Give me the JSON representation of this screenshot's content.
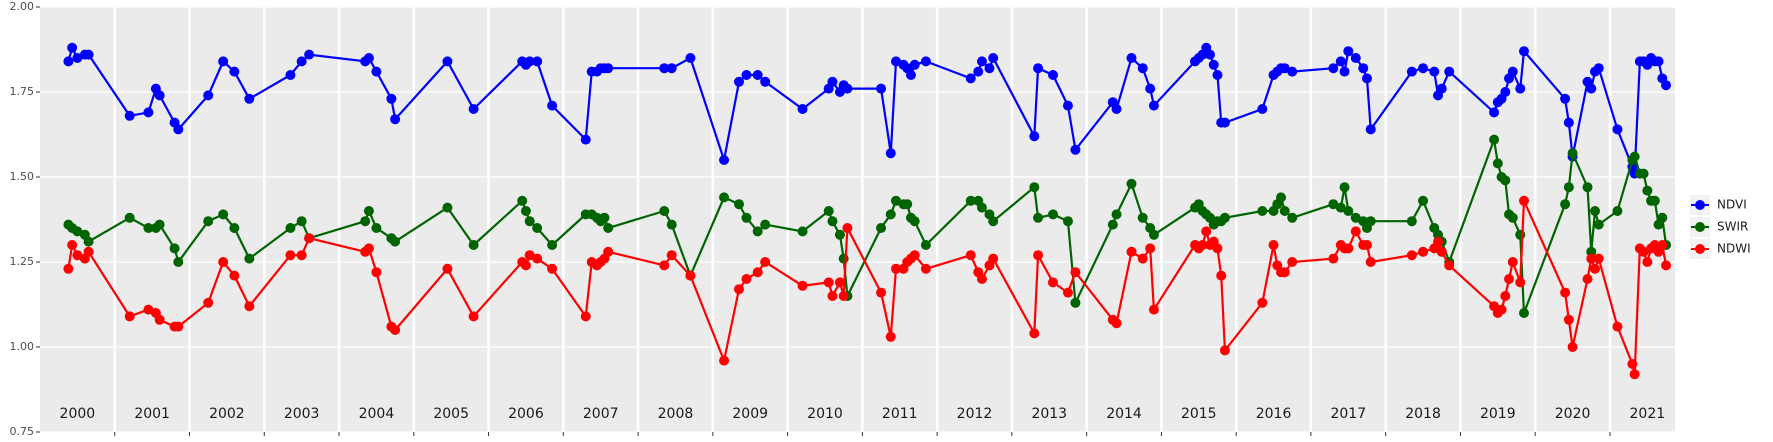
{
  "chart_data": {
    "type": "line",
    "x": [
      2000.38,
      2000.43,
      2000.5,
      2000.6,
      2000.65,
      2001.2,
      2001.45,
      2001.55,
      2001.6,
      2001.8,
      2001.85,
      2002.25,
      2002.45,
      2002.6,
      2002.8,
      2003.35,
      2003.5,
      2003.6,
      2004.35,
      2004.4,
      2004.5,
      2004.7,
      2004.75,
      2005.45,
      2005.8,
      2006.45,
      2006.5,
      2006.55,
      2006.65,
      2006.85,
      2007.3,
      2007.38,
      2007.45,
      2007.5,
      2007.55,
      2007.6,
      2008.35,
      2008.45,
      2008.7,
      2009.15,
      2009.35,
      2009.45,
      2009.6,
      2009.7,
      2010.2,
      2010.55,
      2010.6,
      2010.7,
      2010.75,
      2010.8,
      2011.25,
      2011.38,
      2011.45,
      2011.55,
      2011.6,
      2011.65,
      2011.7,
      2011.85,
      2012.45,
      2012.55,
      2012.6,
      2012.7,
      2012.75,
      2013.3,
      2013.35,
      2013.55,
      2013.75,
      2013.85,
      2014.35,
      2014.4,
      2014.6,
      2014.75,
      2014.85,
      2014.9,
      2015.45,
      2015.5,
      2015.55,
      2015.6,
      2015.65,
      2015.7,
      2015.75,
      2015.8,
      2015.85,
      2016.35,
      2016.5,
      2016.55,
      2016.6,
      2016.65,
      2016.75,
      2017.3,
      2017.4,
      2017.45,
      2017.5,
      2017.6,
      2017.7,
      2017.75,
      2017.8,
      2018.35,
      2018.5,
      2018.65,
      2018.7,
      2018.75,
      2018.85,
      2019.45,
      2019.5,
      2019.55,
      2019.6,
      2019.65,
      2019.7,
      2019.8,
      2019.85,
      2020.4,
      2020.45,
      2020.5,
      2020.7,
      2020.75,
      2020.8,
      2020.85,
      2021.1,
      2021.3,
      2021.33,
      2021.4,
      2021.45,
      2021.5,
      2021.55,
      2021.6,
      2021.65,
      2021.7,
      2021.75
    ],
    "xlim": [
      2000,
      2021.87
    ],
    "xticks": [
      2001,
      2002,
      2003,
      2004,
      2005,
      2006,
      2007,
      2008,
      2009,
      2010,
      2011,
      2012,
      2013,
      2014,
      2015,
      2016,
      2017,
      2018,
      2019,
      2020,
      2021
    ],
    "year_labels": [
      {
        "value": 2000.5,
        "label": "2000"
      },
      {
        "value": 2001.5,
        "label": "2001"
      },
      {
        "value": 2002.5,
        "label": "2002"
      },
      {
        "value": 2003.5,
        "label": "2003"
      },
      {
        "value": 2004.5,
        "label": "2004"
      },
      {
        "value": 2005.5,
        "label": "2005"
      },
      {
        "value": 2006.5,
        "label": "2006"
      },
      {
        "value": 2007.5,
        "label": "2007"
      },
      {
        "value": 2008.5,
        "label": "2008"
      },
      {
        "value": 2009.5,
        "label": "2009"
      },
      {
        "value": 2010.5,
        "label": "2010"
      },
      {
        "value": 2011.5,
        "label": "2011"
      },
      {
        "value": 2012.5,
        "label": "2012"
      },
      {
        "value": 2013.5,
        "label": "2013"
      },
      {
        "value": 2014.5,
        "label": "2014"
      },
      {
        "value": 2015.5,
        "label": "2015"
      },
      {
        "value": 2016.5,
        "label": "2016"
      },
      {
        "value": 2017.5,
        "label": "2017"
      },
      {
        "value": 2018.5,
        "label": "2018"
      },
      {
        "value": 2019.5,
        "label": "2019"
      },
      {
        "value": 2020.5,
        "label": "2020"
      },
      {
        "value": 2021.5,
        "label": "2021"
      }
    ],
    "ylim": [
      0.75,
      2.0
    ],
    "yticks": [
      {
        "value": 0.75,
        "label": "0.75"
      },
      {
        "value": 1.0,
        "label": "1.00"
      },
      {
        "value": 1.25,
        "label": "1.25"
      },
      {
        "value": 1.5,
        "label": "1.50"
      },
      {
        "value": 1.75,
        "label": "1.75"
      },
      {
        "value": 2.0,
        "label": "2.00"
      }
    ],
    "grid": true,
    "legend": "right",
    "series": [
      {
        "name": "NDVI",
        "color": "#0000ff",
        "values": [
          1.84,
          1.88,
          1.85,
          1.86,
          1.86,
          1.68,
          1.69,
          1.76,
          1.74,
          1.66,
          1.64,
          1.74,
          1.84,
          1.81,
          1.73,
          1.8,
          1.84,
          1.86,
          1.84,
          1.85,
          1.81,
          1.73,
          1.67,
          1.84,
          1.7,
          1.84,
          1.83,
          1.84,
          1.84,
          1.71,
          1.61,
          1.81,
          1.81,
          1.82,
          1.82,
          1.82,
          1.82,
          1.82,
          1.85,
          1.55,
          1.78,
          1.8,
          1.8,
          1.78,
          1.7,
          1.76,
          1.78,
          1.75,
          1.77,
          1.76,
          1.76,
          1.57,
          1.84,
          1.83,
          1.82,
          1.8,
          1.83,
          1.84,
          1.79,
          1.81,
          1.84,
          1.82,
          1.85,
          1.62,
          1.82,
          1.8,
          1.71,
          1.58,
          1.72,
          1.7,
          1.85,
          1.82,
          1.76,
          1.71,
          1.84,
          1.85,
          1.86,
          1.88,
          1.86,
          1.83,
          1.8,
          1.66,
          1.66,
          1.7,
          1.8,
          1.81,
          1.82,
          1.82,
          1.81,
          1.82,
          1.84,
          1.81,
          1.87,
          1.85,
          1.82,
          1.79,
          1.64,
          1.81,
          1.82,
          1.81,
          1.74,
          1.76,
          1.81,
          1.69,
          1.72,
          1.73,
          1.75,
          1.79,
          1.81,
          1.76,
          1.87,
          1.73,
          1.66,
          1.56,
          1.78,
          1.76,
          1.81,
          1.82,
          1.64,
          1.53,
          1.51,
          1.84,
          1.84,
          1.83,
          1.85,
          1.84,
          1.84,
          1.79,
          1.77
        ]
      },
      {
        "name": "SWIR",
        "color": "#006400",
        "values": [
          1.36,
          1.35,
          1.34,
          1.33,
          1.31,
          1.38,
          1.35,
          1.35,
          1.36,
          1.29,
          1.25,
          1.37,
          1.39,
          1.35,
          1.26,
          1.35,
          1.37,
          1.32,
          1.37,
          1.4,
          1.35,
          1.32,
          1.31,
          1.41,
          1.3,
          1.43,
          1.4,
          1.37,
          1.35,
          1.3,
          1.39,
          1.39,
          1.38,
          1.37,
          1.38,
          1.35,
          1.4,
          1.36,
          1.21,
          1.44,
          1.42,
          1.38,
          1.34,
          1.36,
          1.34,
          1.4,
          1.37,
          1.33,
          1.26,
          1.15,
          1.35,
          1.39,
          1.43,
          1.42,
          1.42,
          1.38,
          1.37,
          1.3,
          1.43,
          1.43,
          1.41,
          1.39,
          1.37,
          1.47,
          1.38,
          1.39,
          1.37,
          1.13,
          1.36,
          1.39,
          1.48,
          1.38,
          1.35,
          1.33,
          1.41,
          1.42,
          1.4,
          1.39,
          1.38,
          1.36,
          1.37,
          1.37,
          1.38,
          1.4,
          1.4,
          1.42,
          1.44,
          1.4,
          1.38,
          1.42,
          1.41,
          1.47,
          1.4,
          1.38,
          1.37,
          1.35,
          1.37,
          1.37,
          1.43,
          1.35,
          1.33,
          1.31,
          1.25,
          1.61,
          1.54,
          1.5,
          1.49,
          1.39,
          1.38,
          1.33,
          1.1,
          1.42,
          1.47,
          1.57,
          1.47,
          1.28,
          1.4,
          1.36,
          1.4,
          1.55,
          1.56,
          1.51,
          1.51,
          1.46,
          1.43,
          1.43,
          1.36,
          1.38,
          1.3
        ]
      },
      {
        "name": "NDWI",
        "color": "#ff0000",
        "values": [
          1.23,
          1.3,
          1.27,
          1.26,
          1.28,
          1.09,
          1.11,
          1.1,
          1.08,
          1.06,
          1.06,
          1.13,
          1.25,
          1.21,
          1.12,
          1.27,
          1.27,
          1.32,
          1.28,
          1.29,
          1.22,
          1.06,
          1.05,
          1.23,
          1.09,
          1.25,
          1.24,
          1.27,
          1.26,
          1.23,
          1.09,
          1.25,
          1.24,
          1.25,
          1.26,
          1.28,
          1.24,
          1.27,
          1.21,
          0.96,
          1.17,
          1.2,
          1.22,
          1.25,
          1.18,
          1.19,
          1.15,
          1.19,
          1.15,
          1.35,
          1.16,
          1.03,
          1.23,
          1.23,
          1.25,
          1.26,
          1.27,
          1.23,
          1.27,
          1.22,
          1.2,
          1.24,
          1.26,
          1.04,
          1.27,
          1.19,
          1.16,
          1.22,
          1.08,
          1.07,
          1.28,
          1.26,
          1.29,
          1.11,
          1.3,
          1.29,
          1.3,
          1.34,
          1.3,
          1.31,
          1.29,
          1.21,
          0.99,
          1.13,
          1.3,
          1.24,
          1.22,
          1.22,
          1.25,
          1.26,
          1.3,
          1.29,
          1.29,
          1.34,
          1.3,
          1.3,
          1.25,
          1.27,
          1.28,
          1.29,
          1.31,
          1.28,
          1.24,
          1.12,
          1.1,
          1.11,
          1.15,
          1.2,
          1.25,
          1.19,
          1.43,
          1.16,
          1.08,
          1.0,
          1.2,
          1.26,
          1.23,
          1.26,
          1.06,
          0.95,
          0.92,
          1.29,
          1.28,
          1.25,
          1.29,
          1.3,
          1.28,
          1.3,
          1.24
        ]
      }
    ]
  }
}
